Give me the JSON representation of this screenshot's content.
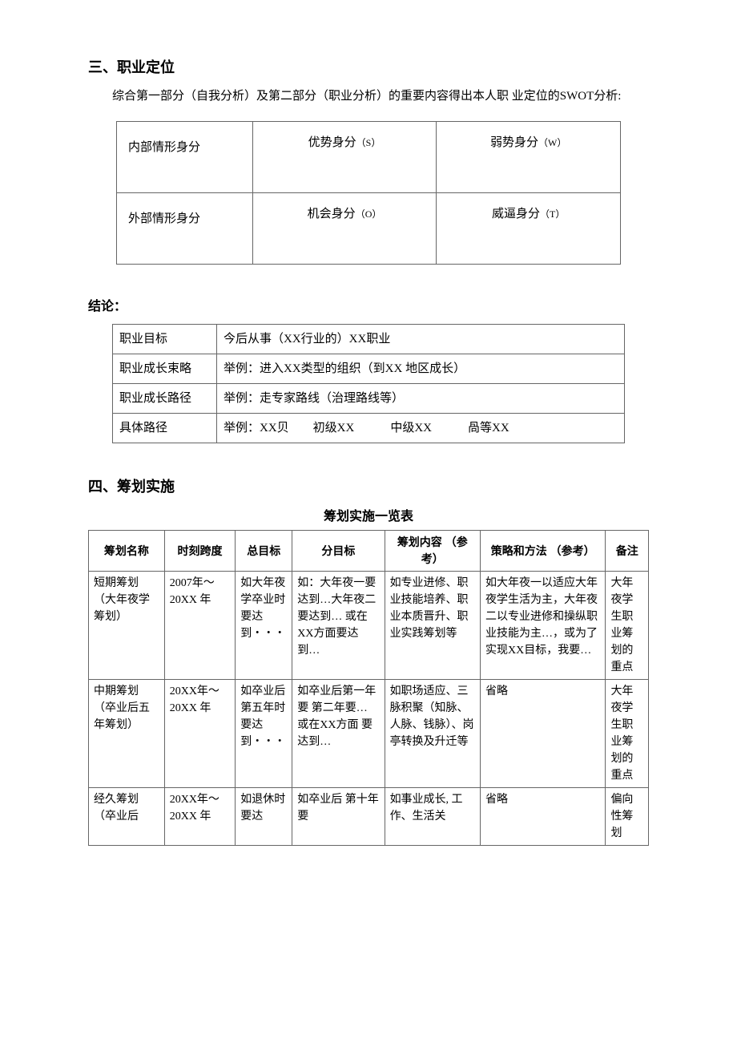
{
  "section3": {
    "heading": "三、职业定位",
    "intro": "综合第一部分（自我分析）及第二部分（职业分析）的重要内容得出本人职 业定位的SWOT分析:",
    "swot": {
      "internal_label": "内部情形身分",
      "external_label": "外部情形身分",
      "s_label": "优势身分",
      "s_code": "（S）",
      "w_label": "弱势身分",
      "w_code": "（W）",
      "o_label": "机会身分",
      "o_code": "（O）",
      "t_label": "威逼身分",
      "t_code": "（T）"
    },
    "conclusion_heading": "结论：",
    "conclusion": {
      "rows": [
        {
          "label": "职业目标",
          "value": "今后从事（XX行业的）XX职业"
        },
        {
          "label": "职业成长束略",
          "value": "举例：进入XX类型的组织（到XX 地区成长）"
        },
        {
          "label": "职业成长路径",
          "value": "举例：走专家路线（治理路线等）"
        },
        {
          "label": "具体路径",
          "value": "举例：XX贝  初级XX   中级XX   咼等XX"
        }
      ]
    }
  },
  "section4": {
    "heading": "四、筹划实施",
    "table_title": "筹划实施一览表",
    "columns": [
      "筹划名称",
      "时刻跨度",
      "总目标",
      "分目标",
      "筹划内容  （参考）",
      "策略和方法  （参考）",
      "备注"
    ],
    "rows": [
      {
        "name": "短期筹划 （大年夜学筹划）",
        "span": "2007年～20XX 年",
        "goal": "如大年夜学卒业时要达到・・・",
        "sub": "如：大年夜一要达到…大年夜二要达到…\n或在XX方面要达到…",
        "content": "如专业进修、职业技能培养、职业本质晋升、职业实践筹划等",
        "strategy": "如大年夜一以适应大年夜学生活为主，大年夜二以专业进修和操纵职业技能为主…，或为了实现XX目标，我要…",
        "note": "大年夜学生职业筹划的重点"
      },
      {
        "name": "中期筹划 （卒业后五年筹划）",
        "span": "20XX年～20XX 年",
        "goal": "如卒业后第五年时要达到・・・",
        "sub": "如卒业后第一年要 第二年要… 或在XX方面 要达到…",
        "content": "如职场适应、三脉积聚（知脉、人脉、钱脉）、岗亭转换及升迁等",
        "strategy": "省略",
        "note": "大年夜学生职业筹划的重点"
      },
      {
        "name": "经久筹划 （卒业后",
        "span": "20XX年～20XX 年",
        "goal": "如退休时要达",
        "sub": "如卒业后 第十年要",
        "content": "如事业成长, 工作、生活关",
        "strategy": "省略",
        "note": "偏向性筹划"
      }
    ]
  },
  "styles": {
    "page_bg": "#ffffff",
    "text_color": "#000000",
    "border_color": "#666666",
    "heading_fontsize": 18,
    "body_fontsize": 15,
    "small_fontsize": 12,
    "table_fontsize": 14
  }
}
